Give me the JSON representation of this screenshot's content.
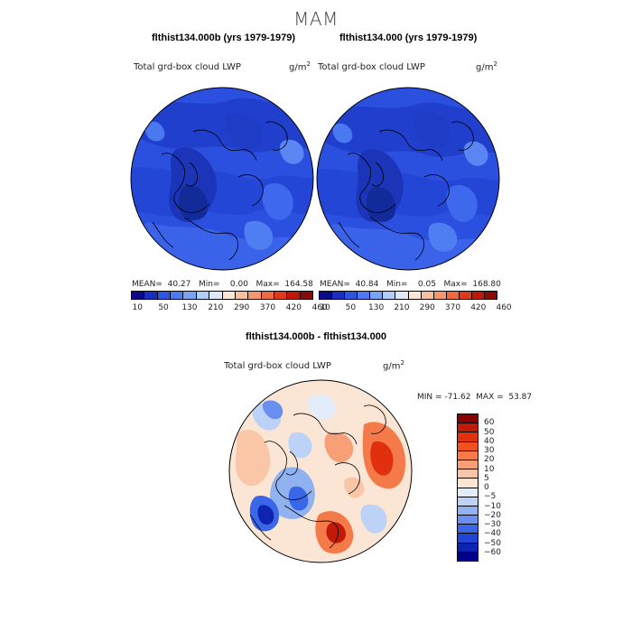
{
  "season": "MAM",
  "panels": [
    {
      "case_title": "flthist134.000b (yrs 1979-1979)",
      "field_label": "Total grd-box cloud LWP",
      "units_base": "g/m",
      "units_exp": "2",
      "stats": "MEAN=  40.27   Min=    0.00   Max=  164.58"
    },
    {
      "case_title": "flthist134.000 (yrs 1979-1979)",
      "field_label": "Total grd-box cloud LWP",
      "units_base": "g/m",
      "units_exp": "2",
      "stats": "MEAN=  40.84   Min=    0.05   Max=  168.80"
    }
  ],
  "colorbar": {
    "colors": [
      "#0a0a8a",
      "#1a2fc0",
      "#2f55e0",
      "#4d7af0",
      "#7aa3f5",
      "#b0cdf8",
      "#dde9fb",
      "#fde6d6",
      "#f9c0a0",
      "#f49870",
      "#ee6a40",
      "#e03a1c",
      "#c01808",
      "#8a0a0a"
    ],
    "labels": [
      "10",
      "50",
      "130",
      "210",
      "290",
      "370",
      "420",
      "460"
    ]
  },
  "diff": {
    "title": "flthist134.000b - flthist134.000",
    "field_label": "Total grd-box cloud LWP",
    "units_base": "g/m",
    "units_exp": "2",
    "minmax": "MIN = -71.62  MAX =  53.87",
    "colors": [
      "#8b0000",
      "#c21a08",
      "#e0300e",
      "#f25020",
      "#f57a4a",
      "#f7a078",
      "#f9c6a8",
      "#fbe6d6",
      "#e2ecfa",
      "#bcd2f6",
      "#90b2f0",
      "#6a8ff0",
      "#3a66e8",
      "#1f44d6",
      "#0e24b0",
      "#00008b"
    ],
    "labels": [
      "60",
      "50",
      "40",
      "30",
      "20",
      "10",
      "5",
      "0",
      "−5",
      "−10",
      "−20",
      "−30",
      "−40",
      "−50",
      "−60"
    ]
  }
}
